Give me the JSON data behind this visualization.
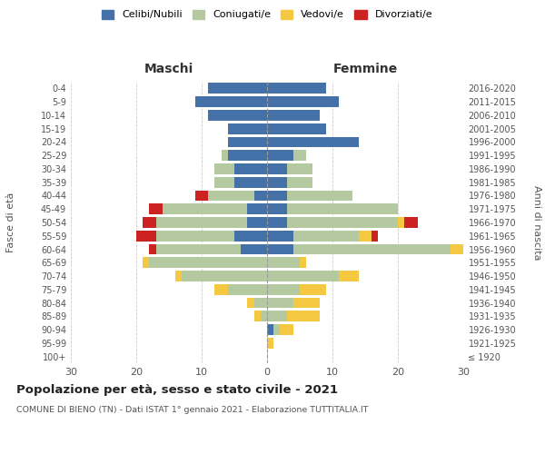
{
  "age_groups": [
    "100+",
    "95-99",
    "90-94",
    "85-89",
    "80-84",
    "75-79",
    "70-74",
    "65-69",
    "60-64",
    "55-59",
    "50-54",
    "45-49",
    "40-44",
    "35-39",
    "30-34",
    "25-29",
    "20-24",
    "15-19",
    "10-14",
    "5-9",
    "0-4"
  ],
  "birth_years": [
    "≤ 1920",
    "1921-1925",
    "1926-1930",
    "1931-1935",
    "1936-1940",
    "1941-1945",
    "1946-1950",
    "1951-1955",
    "1956-1960",
    "1961-1965",
    "1966-1970",
    "1971-1975",
    "1976-1980",
    "1981-1985",
    "1986-1990",
    "1991-1995",
    "1996-2000",
    "2001-2005",
    "2006-2010",
    "2011-2015",
    "2016-2020"
  ],
  "maschi": {
    "celibi": [
      0,
      0,
      0,
      0,
      0,
      0,
      0,
      0,
      4,
      5,
      3,
      3,
      2,
      5,
      5,
      6,
      6,
      6,
      9,
      11,
      9
    ],
    "coniugati": [
      0,
      0,
      0,
      1,
      2,
      6,
      13,
      18,
      13,
      12,
      14,
      13,
      7,
      3,
      3,
      1,
      0,
      0,
      0,
      0,
      0
    ],
    "vedovi": [
      0,
      0,
      0,
      1,
      1,
      2,
      1,
      1,
      0,
      0,
      0,
      0,
      0,
      0,
      0,
      0,
      0,
      0,
      0,
      0,
      0
    ],
    "divorziati": [
      0,
      0,
      0,
      0,
      0,
      0,
      0,
      0,
      1,
      3,
      2,
      2,
      2,
      0,
      0,
      0,
      0,
      0,
      0,
      0,
      0
    ]
  },
  "femmine": {
    "nubili": [
      0,
      0,
      1,
      0,
      0,
      0,
      0,
      0,
      4,
      4,
      3,
      3,
      3,
      3,
      3,
      4,
      14,
      9,
      8,
      11,
      9
    ],
    "coniugate": [
      0,
      0,
      1,
      3,
      4,
      5,
      11,
      5,
      24,
      10,
      17,
      17,
      10,
      4,
      4,
      2,
      0,
      0,
      0,
      0,
      0
    ],
    "vedove": [
      0,
      1,
      2,
      5,
      4,
      4,
      3,
      1,
      2,
      2,
      1,
      0,
      0,
      0,
      0,
      0,
      0,
      0,
      0,
      0,
      0
    ],
    "divorziate": [
      0,
      0,
      0,
      0,
      0,
      0,
      0,
      0,
      2,
      1,
      2,
      0,
      0,
      0,
      0,
      0,
      0,
      0,
      0,
      0,
      0
    ]
  },
  "colors": {
    "celibi": "#4472a8",
    "coniugati": "#b5c9a0",
    "vedovi": "#f5c842",
    "divorziati": "#cc2222"
  },
  "xlim": 30,
  "title": "Popolazione per età, sesso e stato civile - 2021",
  "subtitle": "COMUNE DI BIENO (TN) - Dati ISTAT 1° gennaio 2021 - Elaborazione TUTTITALIA.IT",
  "ylabel": "Fasce di età",
  "ylabel_right": "Anni di nascita",
  "xlabel_left": "Maschi",
  "xlabel_right": "Femmine",
  "legend_labels": [
    "Celibi/Nubili",
    "Coniugati/e",
    "Vedovi/e",
    "Divorziati/e"
  ],
  "bar_height": 0.8,
  "background_color": "#ffffff",
  "grid_color": "#cccccc"
}
